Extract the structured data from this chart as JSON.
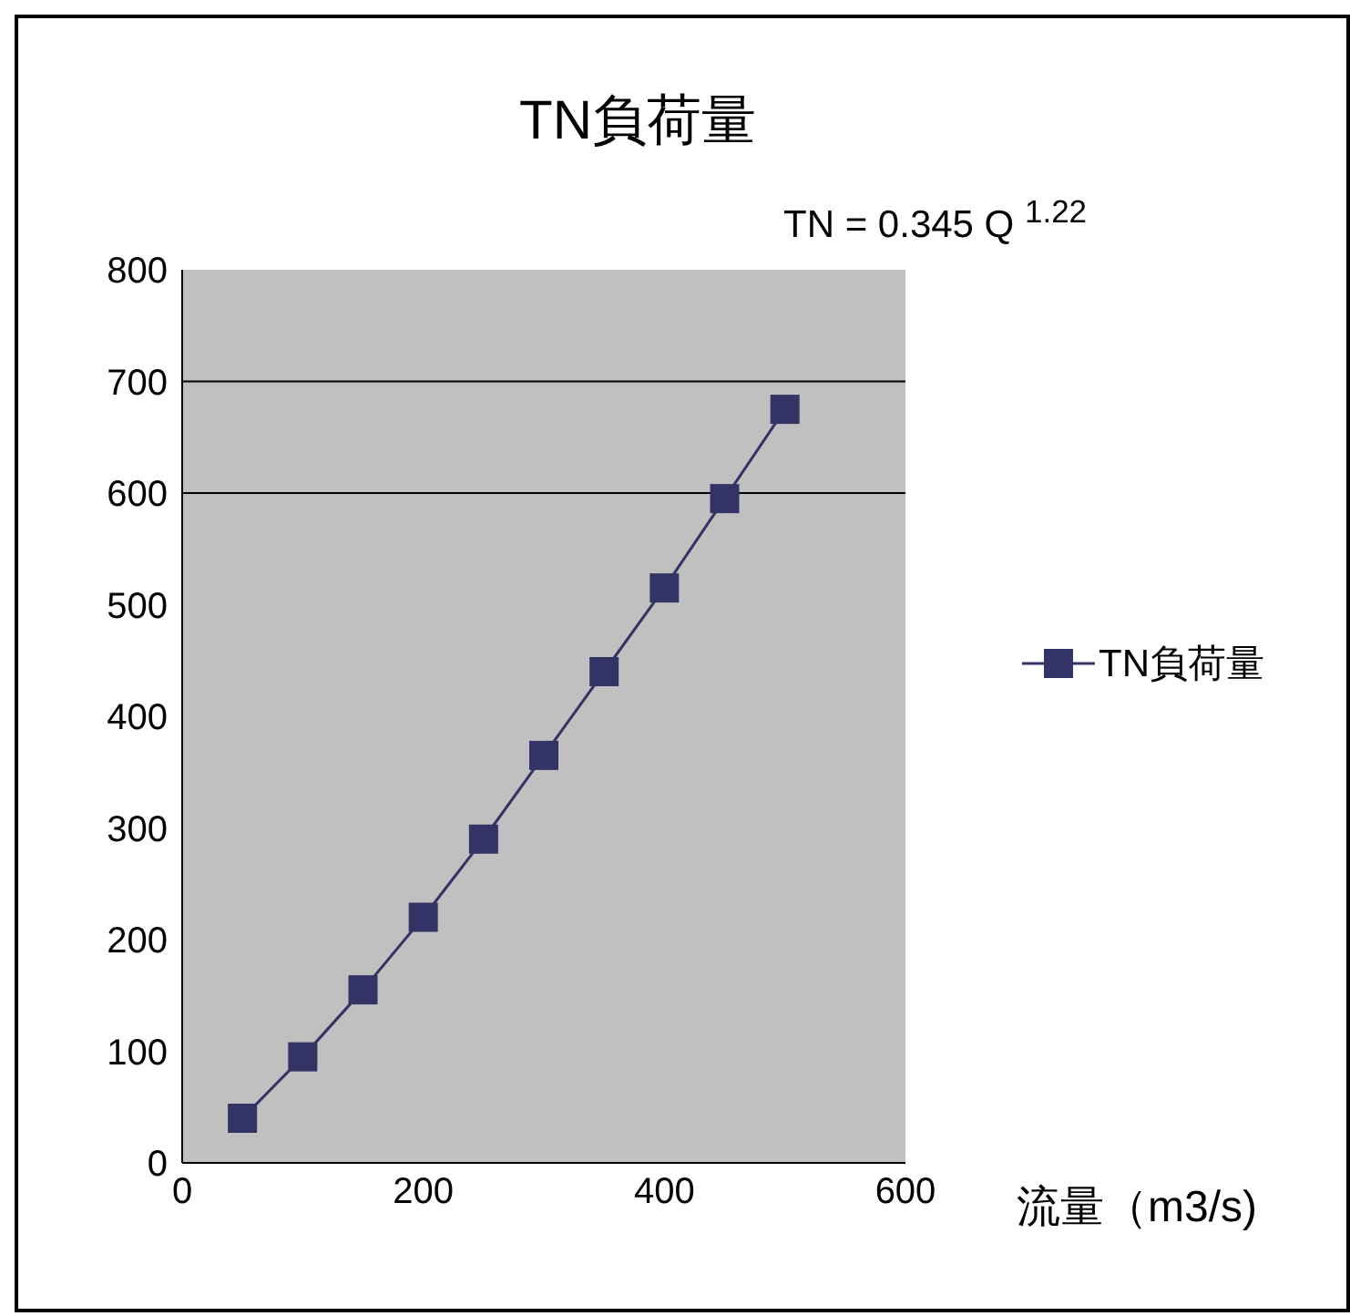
{
  "chart_data": {
    "type": "line",
    "title": "TN負荷量",
    "xlabel": "流量（m3/s)",
    "annotations": [
      "TN = 0.345 Q $^{1.22}$"
    ],
    "x": [
      50,
      100,
      150,
      200,
      250,
      300,
      350,
      400,
      450,
      500
    ],
    "series": [
      {
        "name": "TN負荷量",
        "color": "#333366",
        "values": [
          40,
          95,
          155,
          220,
          290,
          365,
          440,
          515,
          595,
          675
        ]
      }
    ],
    "xlim": [
      0,
      600
    ],
    "xticks": [
      0,
      200,
      400,
      600
    ],
    "ylim": [
      0,
      800
    ],
    "yticks": [
      0,
      100,
      200,
      300,
      400,
      500,
      600,
      700,
      800
    ],
    "ref_lines": [
      {
        "axis": "y",
        "value": 600,
        "color": "#000000"
      },
      {
        "axis": "y",
        "value": 700,
        "color": "#000000"
      }
    ],
    "legend": "right",
    "marker": "square",
    "line_style": "solid"
  }
}
